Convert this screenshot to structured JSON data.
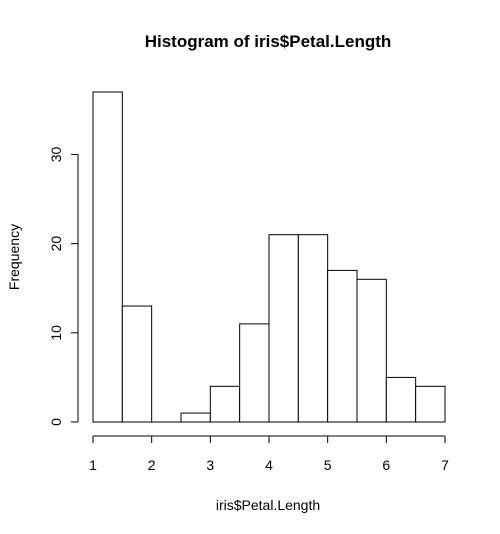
{
  "chart_data": {
    "type": "bar",
    "title": "Histogram of iris$Petal.Length",
    "xlabel": "iris$Petal.Length",
    "ylabel": "Frequency",
    "bins": [
      {
        "start": 1.0,
        "end": 1.5,
        "count": 37
      },
      {
        "start": 1.5,
        "end": 2.0,
        "count": 13
      },
      {
        "start": 2.0,
        "end": 2.5,
        "count": 0
      },
      {
        "start": 2.5,
        "end": 3.0,
        "count": 1
      },
      {
        "start": 3.0,
        "end": 3.5,
        "count": 4
      },
      {
        "start": 3.5,
        "end": 4.0,
        "count": 11
      },
      {
        "start": 4.0,
        "end": 4.5,
        "count": 21
      },
      {
        "start": 4.5,
        "end": 5.0,
        "count": 21
      },
      {
        "start": 5.0,
        "end": 5.5,
        "count": 17
      },
      {
        "start": 5.5,
        "end": 6.0,
        "count": 16
      },
      {
        "start": 6.0,
        "end": 6.5,
        "count": 5
      },
      {
        "start": 6.5,
        "end": 7.0,
        "count": 4
      }
    ],
    "xlim": [
      1,
      7
    ],
    "ylim": [
      0,
      37
    ],
    "x_ticks": [
      "1",
      "2",
      "3",
      "4",
      "5",
      "6",
      "7"
    ],
    "y_ticks": [
      "0",
      "10",
      "20",
      "30"
    ],
    "grid": false
  }
}
